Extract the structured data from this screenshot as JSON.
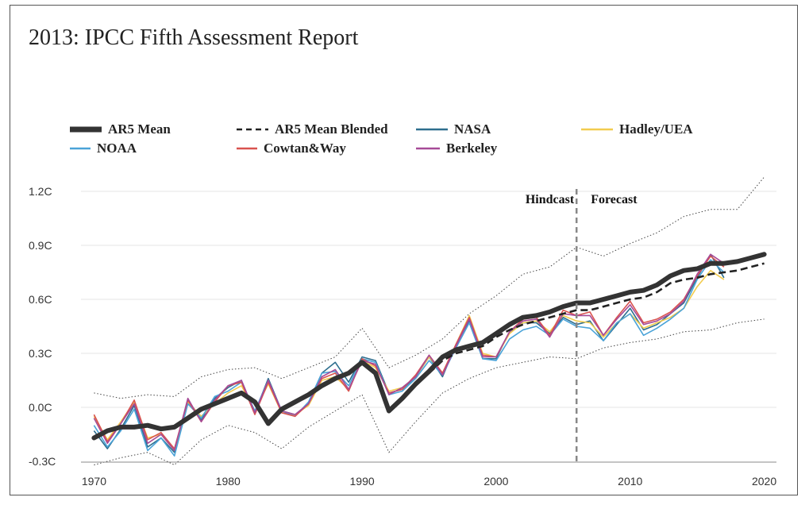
{
  "chart_data": {
    "type": "line",
    "title": "2013: IPCC Fifth Assessment Report",
    "xlabel": "",
    "ylabel": "",
    "xlim": [
      1969.5,
      2020.5
    ],
    "ylim": [
      -0.3,
      1.2
    ],
    "grid": true,
    "legend_position": "top",
    "x_ticks": [
      "1970",
      "1980",
      "1990",
      "2000",
      "2010",
      "2020"
    ],
    "y_ticks": [
      "1.2C",
      "0.9C",
      "0.6C",
      "0.3C",
      "0.0C",
      "-0.3C"
    ],
    "annotations": [
      "Hindcast",
      "Forecast"
    ],
    "divider_year": 2006,
    "legend": [
      {
        "name": "AR5 Mean",
        "color": "#333333",
        "style": "thick"
      },
      {
        "name": "AR5 Mean Blended",
        "color": "#222222",
        "style": "dashed"
      },
      {
        "name": "NASA",
        "color": "#2e6e8e",
        "style": "solid"
      },
      {
        "name": "Hadley/UEA",
        "color": "#f2cc4f",
        "style": "solid"
      },
      {
        "name": "NOAA",
        "color": "#4aa3d8",
        "style": "solid"
      },
      {
        "name": "Cowtan&Way",
        "color": "#d9534f",
        "style": "solid"
      },
      {
        "name": "Berkeley",
        "color": "#a64a97",
        "style": "solid"
      }
    ],
    "ar5_mean": {
      "x": [
        1970,
        1971,
        1972,
        1973,
        1974,
        1975,
        1976,
        1977,
        1978,
        1979,
        1980,
        1981,
        1982,
        1983,
        1984,
        1985,
        1986,
        1987,
        1988,
        1989,
        1990,
        1991,
        1992,
        1993,
        1994,
        1995,
        1996,
        1997,
        1998,
        1999,
        2000,
        2001,
        2002,
        2003,
        2004,
        2005,
        2006,
        2007,
        2008,
        2009,
        2010,
        2011,
        2012,
        2013,
        2014,
        2015,
        2016,
        2017,
        2018,
        2019,
        2020
      ],
      "y": [
        -0.17,
        -0.13,
        -0.11,
        -0.11,
        -0.1,
        -0.12,
        -0.11,
        -0.06,
        -0.01,
        0.02,
        0.05,
        0.08,
        0.03,
        -0.09,
        -0.01,
        0.03,
        0.07,
        0.12,
        0.16,
        0.19,
        0.25,
        0.19,
        -0.02,
        0.05,
        0.13,
        0.2,
        0.28,
        0.32,
        0.34,
        0.36,
        0.41,
        0.46,
        0.5,
        0.51,
        0.53,
        0.56,
        0.58,
        0.58,
        0.6,
        0.62,
        0.64,
        0.65,
        0.68,
        0.73,
        0.76,
        0.77,
        0.8,
        0.8,
        0.81,
        0.83,
        0.85
      ]
    },
    "ar5_mean_blended": {
      "x": [
        1995,
        1996,
        1997,
        1998,
        1999,
        2000,
        2001,
        2002,
        2003,
        2004,
        2005,
        2006,
        2007,
        2008,
        2009,
        2010,
        2011,
        2012,
        2013,
        2014,
        2015,
        2016,
        2017,
        2018,
        2019,
        2020
      ],
      "y": [
        0.19,
        0.26,
        0.3,
        0.32,
        0.34,
        0.39,
        0.43,
        0.46,
        0.48,
        0.5,
        0.52,
        0.54,
        0.54,
        0.56,
        0.58,
        0.6,
        0.61,
        0.64,
        0.69,
        0.71,
        0.72,
        0.74,
        0.75,
        0.76,
        0.78,
        0.8
      ]
    },
    "model_range_upper": {
      "x": [
        1970,
        1972,
        1974,
        1976,
        1978,
        1980,
        1982,
        1984,
        1986,
        1988,
        1990,
        1992,
        1994,
        1996,
        1998,
        2000,
        2002,
        2004,
        2006,
        2008,
        2010,
        2012,
        2014,
        2016,
        2018,
        2020
      ],
      "y": [
        0.08,
        0.05,
        0.07,
        0.06,
        0.17,
        0.21,
        0.22,
        0.16,
        0.22,
        0.28,
        0.44,
        0.22,
        0.29,
        0.38,
        0.52,
        0.62,
        0.74,
        0.78,
        0.89,
        0.84,
        0.91,
        0.97,
        1.06,
        1.1,
        1.1,
        1.28
      ]
    },
    "model_range_lower": {
      "x": [
        1970,
        1972,
        1974,
        1976,
        1978,
        1980,
        1982,
        1984,
        1986,
        1988,
        1990,
        1992,
        1994,
        1996,
        1998,
        2000,
        2002,
        2004,
        2006,
        2008,
        2010,
        2012,
        2014,
        2016,
        2018,
        2020
      ],
      "y": [
        -0.32,
        -0.28,
        -0.25,
        -0.32,
        -0.18,
        -0.1,
        -0.14,
        -0.23,
        -0.11,
        -0.02,
        0.07,
        -0.25,
        -0.08,
        0.08,
        0.16,
        0.22,
        0.25,
        0.28,
        0.27,
        0.33,
        0.36,
        0.38,
        0.42,
        0.43,
        0.47,
        0.49
      ]
    },
    "series": [
      {
        "name": "NASA",
        "color": "#2e6e8e",
        "x": [
          1970,
          1971,
          1972,
          1973,
          1974,
          1975,
          1976,
          1977,
          1978,
          1979,
          1980,
          1981,
          1982,
          1983,
          1984,
          1985,
          1986,
          1987,
          1988,
          1989,
          1990,
          1991,
          1992,
          1993,
          1994,
          1995,
          1996,
          1997,
          1998,
          1999,
          2000,
          2001,
          2002,
          2003,
          2004,
          2005,
          2006,
          2007,
          2008,
          2009,
          2010,
          2011,
          2012,
          2013,
          2014,
          2015,
          2016,
          2017
        ],
        "y": [
          -0.13,
          -0.23,
          -0.12,
          0.01,
          -0.22,
          -0.17,
          -0.25,
          0.03,
          -0.07,
          0.05,
          0.11,
          0.15,
          -0.03,
          0.16,
          -0.02,
          -0.04,
          0.02,
          0.19,
          0.25,
          0.14,
          0.28,
          0.26,
          0.08,
          0.1,
          0.17,
          0.28,
          0.17,
          0.35,
          0.48,
          0.27,
          0.27,
          0.42,
          0.47,
          0.47,
          0.41,
          0.5,
          0.46,
          0.48,
          0.37,
          0.46,
          0.55,
          0.43,
          0.46,
          0.52,
          0.58,
          0.72,
          0.85,
          0.72
        ]
      },
      {
        "name": "Hadley/UEA",
        "color": "#f2cc4f",
        "x": [
          1970,
          1971,
          1972,
          1973,
          1974,
          1975,
          1976,
          1977,
          1978,
          1979,
          1980,
          1981,
          1982,
          1983,
          1984,
          1985,
          1986,
          1987,
          1988,
          1989,
          1990,
          1991,
          1992,
          1993,
          1994,
          1995,
          1996,
          1997,
          1998,
          1999,
          2000,
          2001,
          2002,
          2003,
          2004,
          2005,
          2006,
          2007,
          2008,
          2009,
          2010,
          2011,
          2012,
          2013,
          2014,
          2015,
          2016,
          2017
        ],
        "y": [
          -0.05,
          -0.18,
          -0.08,
          0.03,
          -0.17,
          -0.15,
          -0.24,
          0.03,
          -0.05,
          0.02,
          0.08,
          0.12,
          -0.02,
          0.13,
          -0.03,
          -0.04,
          0.01,
          0.15,
          0.17,
          0.1,
          0.26,
          0.22,
          0.09,
          0.11,
          0.17,
          0.28,
          0.19,
          0.35,
          0.51,
          0.3,
          0.28,
          0.41,
          0.47,
          0.48,
          0.42,
          0.51,
          0.48,
          0.47,
          0.39,
          0.47,
          0.52,
          0.44,
          0.47,
          0.5,
          0.55,
          0.67,
          0.76,
          0.71
        ]
      },
      {
        "name": "NOAA",
        "color": "#4aa3d8",
        "x": [
          1970,
          1971,
          1972,
          1973,
          1974,
          1975,
          1976,
          1977,
          1978,
          1979,
          1980,
          1981,
          1982,
          1983,
          1984,
          1985,
          1986,
          1987,
          1988,
          1989,
          1990,
          1991,
          1992,
          1993,
          1994,
          1995,
          1996,
          1997,
          1998,
          1999,
          2000,
          2001,
          2002,
          2003,
          2004,
          2005,
          2006,
          2007,
          2008,
          2009,
          2010,
          2011,
          2012,
          2013,
          2014,
          2015,
          2016,
          2017
        ],
        "y": [
          -0.1,
          -0.22,
          -0.13,
          -0.01,
          -0.24,
          -0.17,
          -0.27,
          0.02,
          -0.06,
          0.06,
          0.09,
          0.14,
          -0.02,
          0.15,
          -0.02,
          -0.05,
          0.03,
          0.19,
          0.2,
          0.12,
          0.27,
          0.25,
          0.07,
          0.09,
          0.16,
          0.26,
          0.18,
          0.33,
          0.47,
          0.27,
          0.26,
          0.38,
          0.43,
          0.45,
          0.4,
          0.49,
          0.45,
          0.44,
          0.37,
          0.47,
          0.52,
          0.4,
          0.44,
          0.49,
          0.55,
          0.71,
          0.82,
          0.75
        ]
      },
      {
        "name": "Cowtan&Way",
        "color": "#d9534f",
        "x": [
          1970,
          1971,
          1972,
          1973,
          1974,
          1975,
          1976,
          1977,
          1978,
          1979,
          1980,
          1981,
          1982,
          1983,
          1984,
          1985,
          1986,
          1987,
          1988,
          1989,
          1990,
          1991,
          1992,
          1993,
          1994,
          1995,
          1996,
          1997,
          1998,
          1999,
          2000,
          2001,
          2002,
          2003,
          2004,
          2005,
          2006,
          2007,
          2008,
          2009,
          2010,
          2011,
          2012,
          2013,
          2014,
          2015,
          2016,
          2017
        ],
        "y": [
          -0.04,
          -0.19,
          -0.09,
          0.04,
          -0.18,
          -0.14,
          -0.23,
          0.04,
          -0.08,
          0.03,
          0.12,
          0.14,
          -0.04,
          0.14,
          -0.03,
          -0.05,
          0.02,
          0.16,
          0.19,
          0.09,
          0.27,
          0.23,
          0.08,
          0.1,
          0.18,
          0.29,
          0.19,
          0.35,
          0.5,
          0.29,
          0.28,
          0.42,
          0.49,
          0.5,
          0.4,
          0.54,
          0.51,
          0.53,
          0.4,
          0.5,
          0.59,
          0.47,
          0.49,
          0.53,
          0.6,
          0.73,
          0.84,
          0.78
        ]
      },
      {
        "name": "Berkeley",
        "color": "#a64a97",
        "x": [
          1970,
          1971,
          1972,
          1973,
          1974,
          1975,
          1976,
          1977,
          1978,
          1979,
          1980,
          1981,
          1982,
          1983,
          1984,
          1985,
          1986,
          1987,
          1988,
          1989,
          1990,
          1991,
          1992,
          1993,
          1994,
          1995,
          1996,
          1997,
          1998,
          1999,
          2000,
          2001,
          2002,
          2003,
          2004,
          2005,
          2006,
          2007,
          2008,
          2009,
          2010,
          2011,
          2012,
          2013,
          2014,
          2015,
          2016,
          2017
        ],
        "y": [
          -0.06,
          -0.2,
          -0.09,
          0.02,
          -0.2,
          -0.15,
          -0.24,
          0.05,
          -0.08,
          0.04,
          0.12,
          0.15,
          -0.03,
          0.15,
          -0.02,
          -0.04,
          0.02,
          0.17,
          0.21,
          0.1,
          0.26,
          0.24,
          0.07,
          0.11,
          0.17,
          0.29,
          0.18,
          0.34,
          0.49,
          0.28,
          0.28,
          0.42,
          0.48,
          0.49,
          0.39,
          0.52,
          0.51,
          0.51,
          0.4,
          0.49,
          0.57,
          0.46,
          0.48,
          0.52,
          0.59,
          0.74,
          0.85,
          0.8
        ]
      }
    ]
  }
}
